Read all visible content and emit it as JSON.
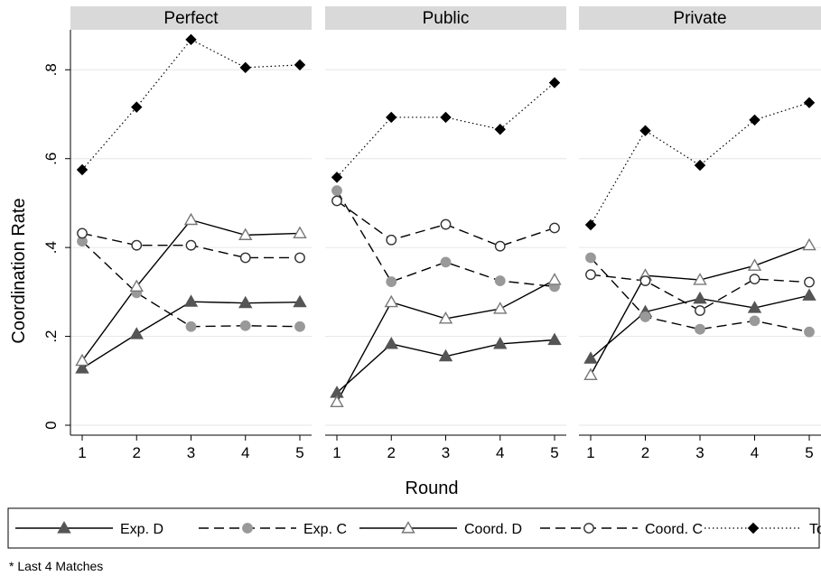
{
  "chart_data": {
    "type": "line",
    "ylabel": "Coordination Rate",
    "xlabel": "Round",
    "x": [
      1,
      2,
      3,
      4,
      5
    ],
    "ylim": [
      0,
      0.89
    ],
    "y_ticks": [
      0,
      0.2,
      0.4,
      0.6,
      0.8
    ],
    "y_tick_labels": [
      "0",
      ".2",
      ".4",
      ".6",
      ".8"
    ],
    "x_tick_labels": [
      "1",
      "2",
      "3",
      "4",
      "5"
    ],
    "grid": true,
    "legend_position": "bottom",
    "series_styles": [
      {
        "key": "exp_d",
        "name": "Exp. D",
        "line": "solid",
        "marker": "triangle-filled",
        "color": "#555555"
      },
      {
        "key": "exp_c",
        "name": "Exp. C",
        "line": "dashed",
        "marker": "circle-filled",
        "color": "#999999"
      },
      {
        "key": "coord_d",
        "name": "Coord. D",
        "line": "solid",
        "marker": "triangle-hollow",
        "color": "#777777"
      },
      {
        "key": "coord_c",
        "name": "Coord. C",
        "line": "dashed",
        "marker": "circle-hollow",
        "color": "#333333"
      },
      {
        "key": "total",
        "name": "Total",
        "line": "dotted",
        "marker": "diamond-filled",
        "color": "#000000"
      }
    ],
    "panels": [
      {
        "title": "Perfect",
        "series": {
          "exp_d": [
            0.128,
            0.205,
            0.278,
            0.275,
            0.277
          ],
          "exp_c": [
            0.414,
            0.298,
            0.222,
            0.224,
            0.222
          ],
          "coord_d": [
            0.145,
            0.312,
            0.462,
            0.428,
            0.432
          ],
          "coord_c": [
            0.432,
            0.405,
            0.405,
            0.377,
            0.377
          ],
          "total": [
            0.575,
            0.716,
            0.868,
            0.805,
            0.811
          ]
        }
      },
      {
        "title": "Public",
        "series": {
          "exp_d": [
            0.073,
            0.183,
            0.155,
            0.183,
            0.192
          ],
          "exp_c": [
            0.528,
            0.323,
            0.367,
            0.325,
            0.312
          ],
          "coord_d": [
            0.052,
            0.277,
            0.24,
            0.262,
            0.327
          ],
          "coord_c": [
            0.505,
            0.417,
            0.452,
            0.403,
            0.444
          ],
          "total": [
            0.558,
            0.693,
            0.693,
            0.666,
            0.771
          ]
        }
      },
      {
        "title": "Private",
        "series": {
          "exp_d": [
            0.15,
            0.255,
            0.285,
            0.264,
            0.292
          ],
          "exp_c": [
            0.377,
            0.244,
            0.216,
            0.235,
            0.21
          ],
          "coord_d": [
            0.113,
            0.337,
            0.327,
            0.359,
            0.405
          ],
          "coord_c": [
            0.339,
            0.325,
            0.258,
            0.329,
            0.322
          ],
          "total": [
            0.451,
            0.663,
            0.585,
            0.687,
            0.726
          ]
        }
      }
    ]
  },
  "footnote": "* Last 4 Matches"
}
